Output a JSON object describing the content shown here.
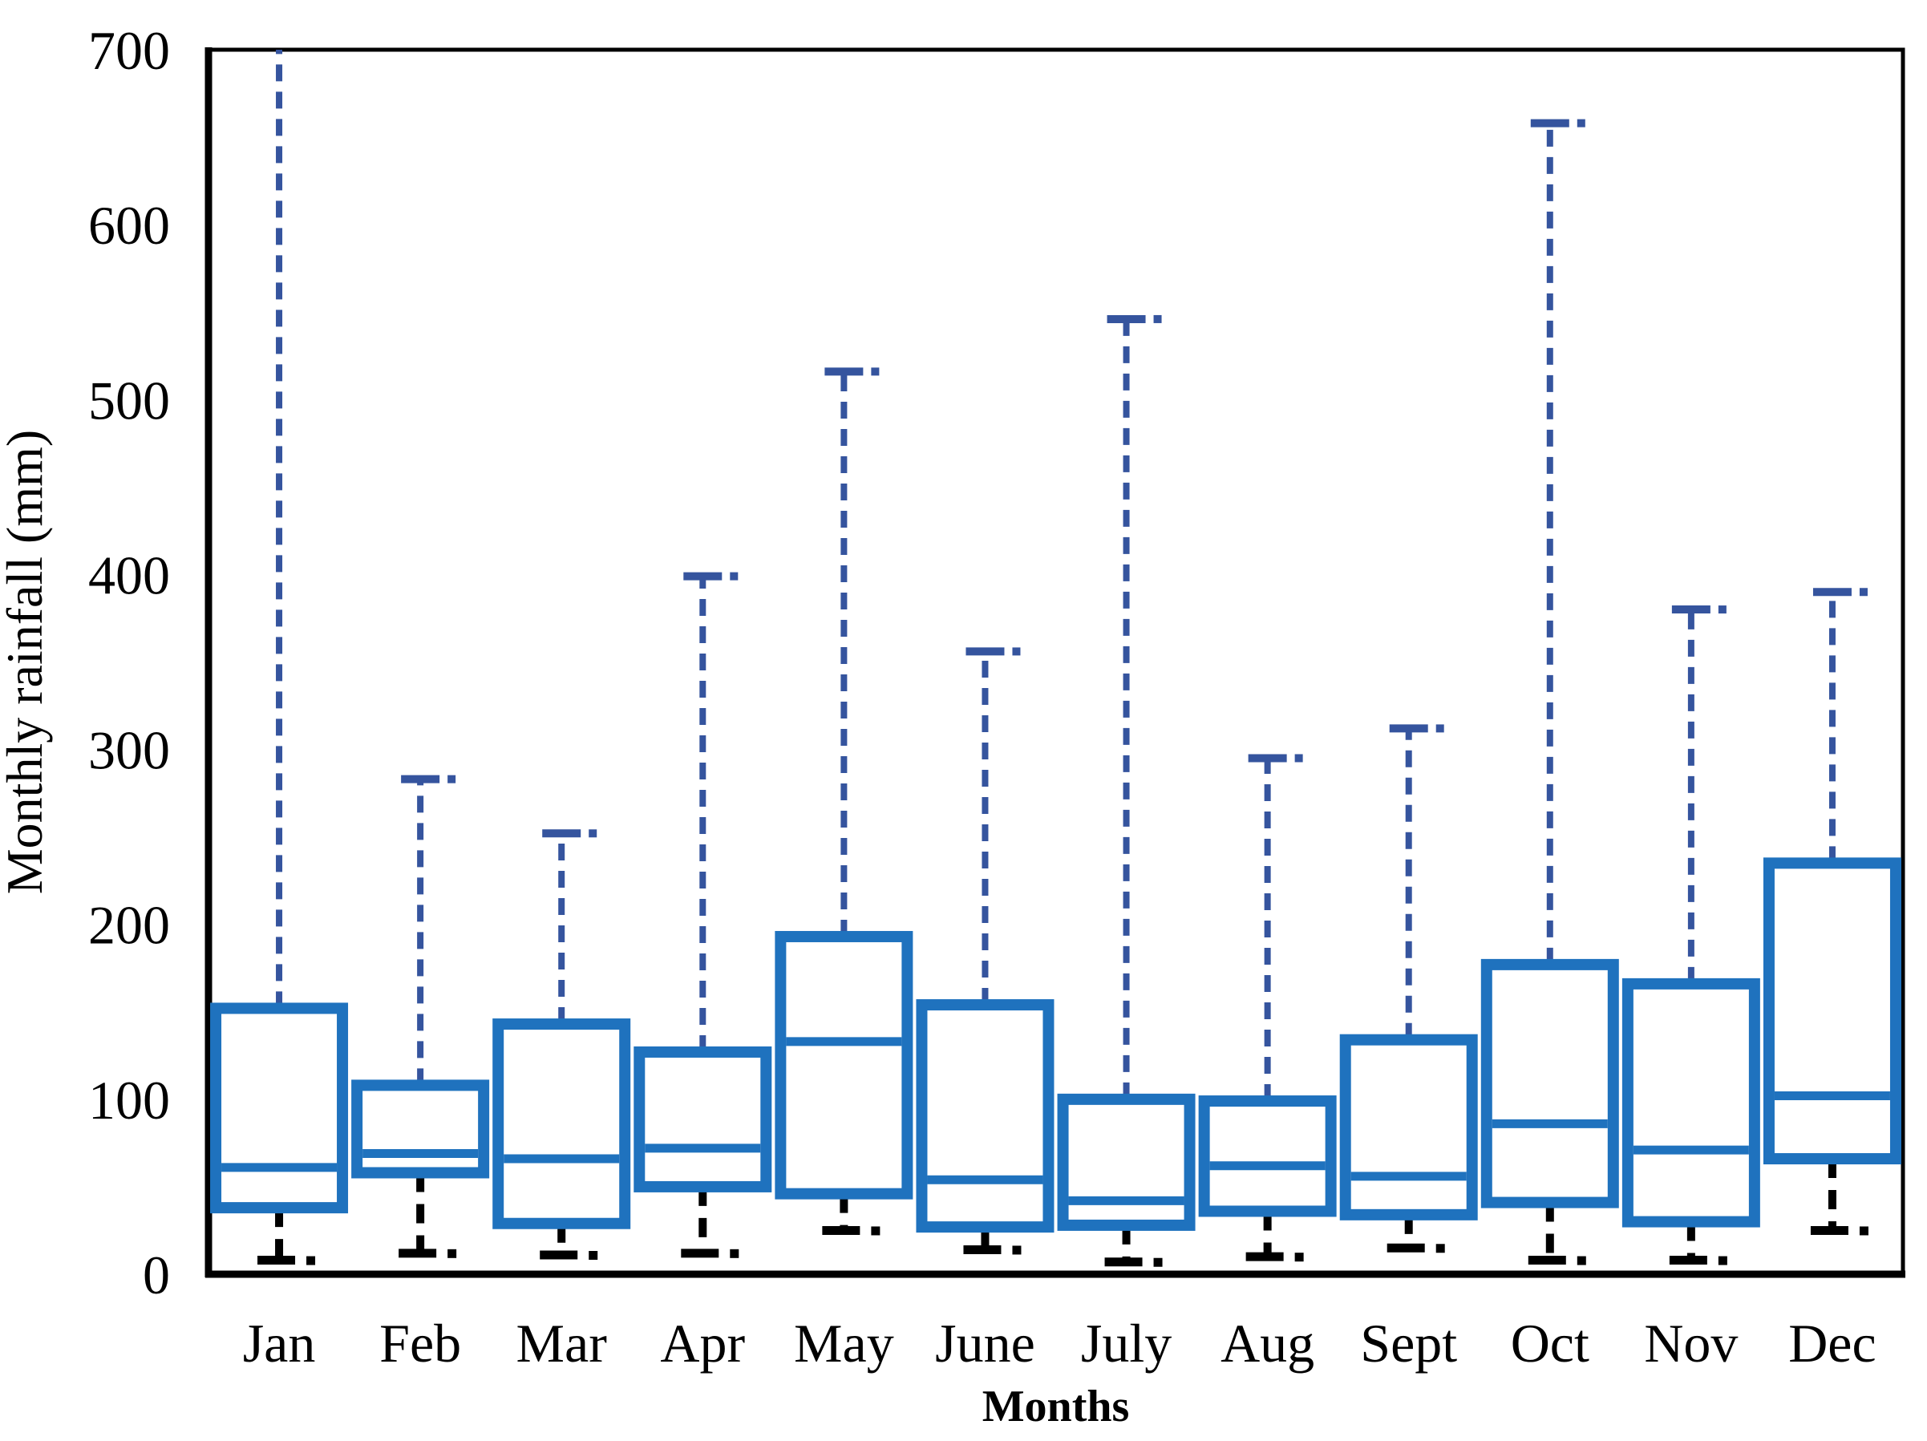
{
  "chart_data": {
    "type": "boxplot",
    "title": "",
    "xlabel": "Months",
    "ylabel": "Monthly rainfall (mm)",
    "ylim": [
      0,
      700
    ],
    "yticks": [
      0,
      100,
      200,
      300,
      400,
      500,
      600,
      700
    ],
    "grid": false,
    "legend": "none",
    "categories": [
      "Jan",
      "Feb",
      "Mar",
      "Apr",
      "May",
      "June",
      "July",
      "Aug",
      "Sept",
      "Oct",
      "Nov",
      "Dec"
    ],
    "series": [
      {
        "name": "Monthly rainfall",
        "boxes": [
          {
            "month": "Jan",
            "whisker_low": 8,
            "q1": 38,
            "median": 61,
            "q3": 152,
            "whisker_high": 700,
            "high_clipped_at_top": true
          },
          {
            "month": "Feb",
            "whisker_low": 12,
            "q1": 58,
            "median": 69,
            "q3": 108,
            "whisker_high": 283,
            "high_clipped_at_top": false
          },
          {
            "month": "Mar",
            "whisker_low": 11,
            "q1": 29,
            "median": 66,
            "q3": 143,
            "whisker_high": 252,
            "high_clipped_at_top": false
          },
          {
            "month": "Apr",
            "whisker_low": 12,
            "q1": 50,
            "median": 72,
            "q3": 127,
            "whisker_high": 399,
            "high_clipped_at_top": false
          },
          {
            "month": "May",
            "whisker_low": 25,
            "q1": 46,
            "median": 133,
            "q3": 193,
            "whisker_high": 516,
            "high_clipped_at_top": false
          },
          {
            "month": "June",
            "whisker_low": 14,
            "q1": 27,
            "median": 54,
            "q3": 154,
            "whisker_high": 356,
            "high_clipped_at_top": false
          },
          {
            "month": "July",
            "whisker_low": 7,
            "q1": 28,
            "median": 42,
            "q3": 100,
            "whisker_high": 546,
            "high_clipped_at_top": false
          },
          {
            "month": "Aug",
            "whisker_low": 10,
            "q1": 36,
            "median": 62,
            "q3": 99,
            "whisker_high": 295,
            "high_clipped_at_top": false
          },
          {
            "month": "Sept",
            "whisker_low": 15,
            "q1": 34,
            "median": 56,
            "q3": 134,
            "whisker_high": 312,
            "high_clipped_at_top": false
          },
          {
            "month": "Oct",
            "whisker_low": 8,
            "q1": 41,
            "median": 86,
            "q3": 177,
            "whisker_high": 658,
            "high_clipped_at_top": false
          },
          {
            "month": "Nov",
            "whisker_low": 8,
            "q1": 30,
            "median": 71,
            "q3": 166,
            "whisker_high": 380,
            "high_clipped_at_top": false
          },
          {
            "month": "Dec",
            "whisker_low": 25,
            "q1": 66,
            "median": 102,
            "q3": 235,
            "whisker_high": 390,
            "high_clipped_at_top": false
          }
        ]
      }
    ],
    "colors": {
      "box_stroke": "#1f72be",
      "box_fill": "#ffffff",
      "median_stroke": "#1f72be",
      "upper_whisker": "#35549e",
      "lower_whisker": "#000000",
      "plot_border": "#000000",
      "background": "#ffffff",
      "text": "#000000"
    },
    "whisker_style": {
      "upper": "dashed",
      "lower": "dashed"
    }
  }
}
